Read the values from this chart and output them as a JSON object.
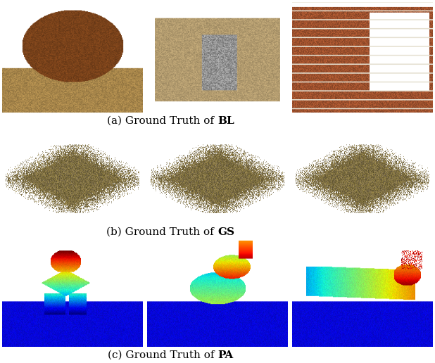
{
  "figure_width": 6.18,
  "figure_height": 5.16,
  "dpi": 100,
  "background_color": "#ffffff",
  "caption_texts_normal": [
    "(a) Ground Truth of ",
    "(b) Ground Truth of ",
    "(c) Ground Truth of "
  ],
  "caption_texts_bold": [
    "BL",
    "GS",
    "PA"
  ],
  "caption_fontsize": 11,
  "row_heights": [
    1.4,
    0.15,
    1.2,
    0.15,
    1.35,
    0.15
  ],
  "wspace": 0.03,
  "hspace": 0.04
}
